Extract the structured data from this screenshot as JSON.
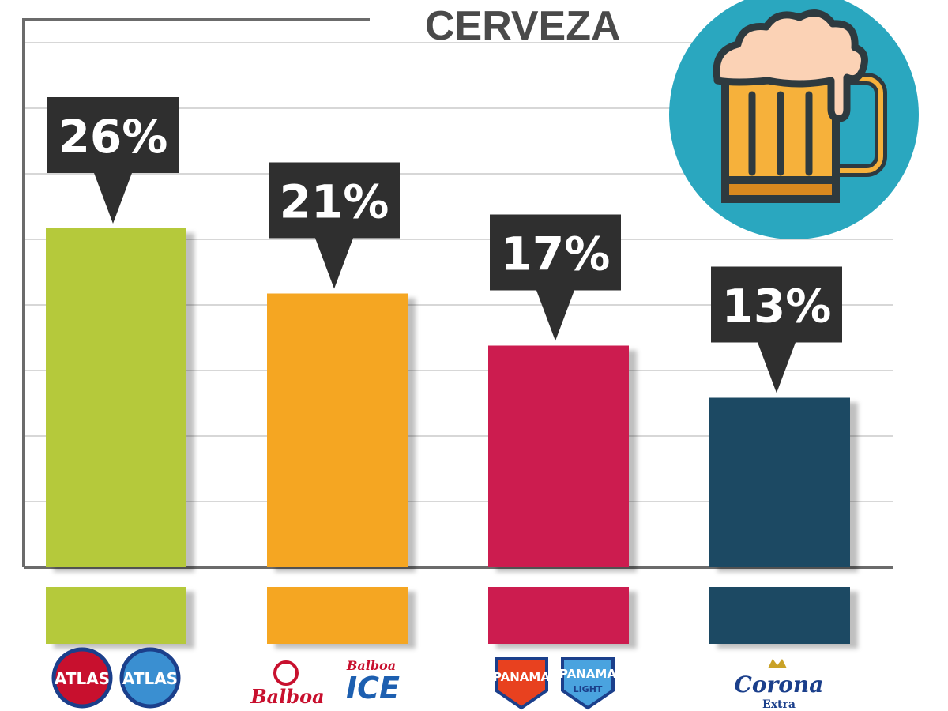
{
  "chart_data": {
    "type": "bar",
    "title": "CERVEZA",
    "categories": [
      "Atlas",
      "Balboa",
      "Panamá",
      "Corona Extra"
    ],
    "values": [
      26,
      21,
      17,
      13
    ],
    "value_labels": [
      "26%",
      "21%",
      "17%",
      "13%"
    ],
    "colors": [
      "#b5c93a",
      "#f5a623",
      "#cc1f4f",
      "#1d4a63"
    ],
    "ylim": [
      0,
      35
    ],
    "grid": true,
    "legend": "none"
  },
  "logos": [
    {
      "brand": "Atlas",
      "texts": [
        "ATLAS",
        "ATLAS"
      ]
    },
    {
      "brand": "Balboa",
      "texts": [
        "Balboa",
        "Balboa",
        "ICE"
      ]
    },
    {
      "brand": "Panamá",
      "texts": [
        "PANAMA",
        "PANAMA",
        "LIGHT"
      ]
    },
    {
      "brand": "Corona",
      "texts": [
        "Corona",
        "Extra"
      ]
    }
  ],
  "icon": {
    "name": "beer-mug-icon",
    "circle_color": "#2aa7bf",
    "beer_color": "#f6b13b",
    "foam_color": "#fbd2b5",
    "outline_color": "#2e3a3f"
  }
}
